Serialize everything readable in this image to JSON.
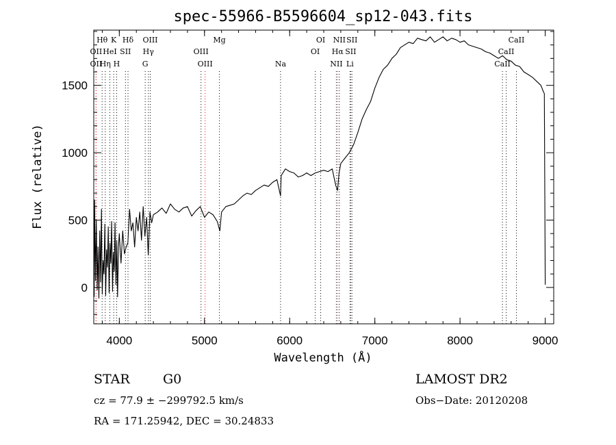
{
  "chart_data": {
    "type": "line",
    "title": "spec-55966-B5596604_sp12-043.fits",
    "xlabel": "Wavelength (Å)",
    "ylabel": "Flux (relative)",
    "xlim": [
      3700,
      9100
    ],
    "ylim": [
      -270,
      1910
    ],
    "xticks": [
      4000,
      5000,
      6000,
      7000,
      8000,
      9000
    ],
    "yticks": [
      0,
      500,
      1000,
      1500
    ],
    "grid": false,
    "series": [
      {
        "x": [
          3705,
          3710,
          3720,
          3730,
          3740,
          3750,
          3760,
          3770,
          3780,
          3790,
          3800,
          3810,
          3820,
          3830,
          3840,
          3850,
          3860,
          3870,
          3880,
          3890,
          3900,
          3910,
          3920,
          3930,
          3940,
          3950,
          3960,
          3970,
          3980,
          3990,
          4000,
          4020,
          4040,
          4060,
          4080,
          4100,
          4120,
          4140,
          4160,
          4180,
          4200,
          4220,
          4240,
          4260,
          4280,
          4300,
          4320,
          4340,
          4360,
          4380,
          4400,
          4450,
          4500,
          4550,
          4600,
          4650,
          4700,
          4750,
          4800,
          4850,
          4900,
          4950,
          5000,
          5050,
          5100,
          5150,
          5180,
          5200,
          5250,
          5300,
          5350,
          5400,
          5450,
          5500,
          5550,
          5600,
          5650,
          5700,
          5750,
          5800,
          5850,
          5893,
          5900,
          5950,
          6000,
          6050,
          6100,
          6150,
          6200,
          6250,
          6300,
          6350,
          6400,
          6450,
          6500,
          6540,
          6562,
          6580,
          6600,
          6650,
          6700,
          6750,
          6800,
          6850,
          6900,
          6950,
          7000,
          7050,
          7100,
          7150,
          7200,
          7250,
          7300,
          7350,
          7400,
          7450,
          7500,
          7550,
          7600,
          7650,
          7700,
          7750,
          7800,
          7850,
          7900,
          7950,
          8000,
          8050,
          8100,
          8150,
          8200,
          8250,
          8300,
          8350,
          8400,
          8450,
          8500,
          8550,
          8600,
          8650,
          8700,
          8750,
          8800,
          8850,
          8900,
          8950,
          8980,
          8990,
          9000
        ],
        "y": [
          -70,
          650,
          50,
          500,
          -20,
          300,
          -80,
          420,
          40,
          580,
          -50,
          200,
          100,
          470,
          -60,
          280,
          150,
          450,
          -40,
          330,
          180,
          490,
          -30,
          260,
          120,
          480,
          20,
          350,
          -70,
          300,
          400,
          180,
          420,
          250,
          300,
          330,
          580,
          420,
          480,
          300,
          520,
          420,
          560,
          350,
          600,
          380,
          520,
          240,
          560,
          480,
          540,
          560,
          590,
          550,
          620,
          580,
          560,
          590,
          600,
          530,
          570,
          600,
          520,
          560,
          540,
          490,
          420,
          560,
          600,
          610,
          620,
          650,
          680,
          700,
          690,
          720,
          740,
          760,
          750,
          780,
          800,
          680,
          830,
          880,
          860,
          850,
          820,
          830,
          850,
          830,
          850,
          860,
          870,
          860,
          880,
          760,
          720,
          850,
          920,
          960,
          1000,
          1060,
          1150,
          1250,
          1320,
          1380,
          1480,
          1560,
          1620,
          1650,
          1700,
          1730,
          1780,
          1800,
          1820,
          1810,
          1850,
          1840,
          1830,
          1860,
          1820,
          1840,
          1860,
          1830,
          1850,
          1840,
          1820,
          1830,
          1800,
          1790,
          1780,
          1770,
          1750,
          1740,
          1720,
          1700,
          1720,
          1690,
          1680,
          1650,
          1640,
          1600,
          1580,
          1560,
          1530,
          1500,
          1450,
          1440,
          20
        ]
      }
    ],
    "line_markers": [
      {
        "label": "Hθ",
        "x": 3798,
        "row": 1,
        "color": "#000000"
      },
      {
        "label": "OII",
        "x": 3727,
        "row": 2,
        "color": "#000000"
      },
      {
        "label": "OII",
        "x": 3727,
        "row": 3,
        "color": "#ff0000"
      },
      {
        "label": "Hη",
        "x": 3835,
        "row": 3,
        "color": "#000000"
      },
      {
        "label": "K",
        "x": 3934,
        "row": 1,
        "color": "#000000"
      },
      {
        "label": "HeI",
        "x": 3889,
        "row": 2,
        "color": "#000000"
      },
      {
        "label": "SII",
        "x": 4072,
        "row": 2,
        "color": "#000000"
      },
      {
        "label": "H",
        "x": 3969,
        "row": 3,
        "color": "#000000"
      },
      {
        "label": "Hδ",
        "x": 4102,
        "row": 1,
        "color": "#000000"
      },
      {
        "label": "OIII",
        "x": 4363,
        "row": 1,
        "color": "#000000"
      },
      {
        "label": "Hγ",
        "x": 4341,
        "row": 2,
        "color": "#000000"
      },
      {
        "label": "G",
        "x": 4304,
        "row": 3,
        "color": "#000000"
      },
      {
        "label": "OIII",
        "x": 4959,
        "row": 2,
        "color": "#000000"
      },
      {
        "label": "OIII",
        "x": 5007,
        "row": 3,
        "color": "#ff0000"
      },
      {
        "label": "Mg",
        "x": 5175,
        "row": 1,
        "color": "#000000"
      },
      {
        "label": "Na",
        "x": 5893,
        "row": 3,
        "color": "#000000"
      },
      {
        "label": "OI",
        "x": 6364,
        "row": 1,
        "color": "#000000"
      },
      {
        "label": "OI",
        "x": 6300,
        "row": 2,
        "color": "#000000"
      },
      {
        "label": "NII",
        "x": 6583,
        "row": 1,
        "color": "#000000"
      },
      {
        "label": "Hα",
        "x": 6563,
        "row": 2,
        "color": "#ff0000"
      },
      {
        "label": "NII",
        "x": 6548,
        "row": 3,
        "color": "#000000"
      },
      {
        "label": "SII",
        "x": 6731,
        "row": 1,
        "color": "#000000"
      },
      {
        "label": "SII",
        "x": 6716,
        "row": 2,
        "color": "#000000"
      },
      {
        "label": "Li",
        "x": 6708,
        "row": 3,
        "color": "#000000"
      },
      {
        "label": "CaII",
        "x": 8662,
        "row": 1,
        "color": "#000000"
      },
      {
        "label": "CaII",
        "x": 8542,
        "row": 2,
        "color": "#000000"
      },
      {
        "label": "CaII",
        "x": 8498,
        "row": 3,
        "color": "#000000"
      }
    ]
  },
  "footer": {
    "class_label": "STAR",
    "subclass_label": "G0",
    "survey_label": "LAMOST DR2",
    "cz_text": "cz = 77.9 ± −299792.5 km/s",
    "obs_date_text": "Obs−Date: 20120208",
    "radec_text": "RA = 171.25942, DEC =  30.24833"
  }
}
